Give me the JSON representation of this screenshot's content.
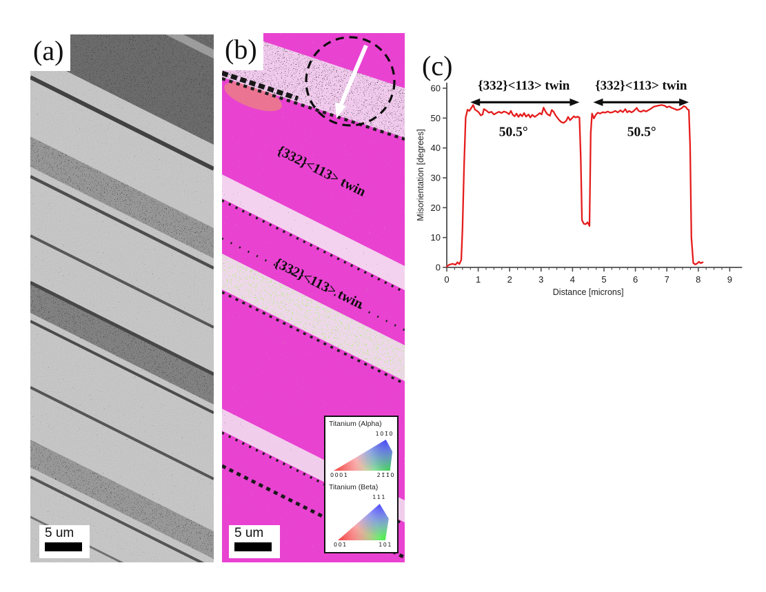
{
  "figure_labels": {
    "a": "(a)",
    "b": "(b)",
    "c": "(c)"
  },
  "panel_a": {
    "description": "grayscale band-contrast micrograph with diagonal twin bands",
    "scale_bar_label": "5 um"
  },
  "panel_b": {
    "description": "EBSD inverse-pole-figure map, magenta beta matrix with twin bands",
    "scale_bar_label": "5 um",
    "twin_labels": [
      "{332}<113> twin",
      "{332}<113> twin"
    ],
    "colors": {
      "matrix_magenta": "#ed38d3",
      "twin_band_pink": "#f7d0f2",
      "speckle_green": "#7de23a",
      "speckle_orange": "#f09a58"
    },
    "legend": {
      "alpha_title": "Titanium (Alpha)",
      "alpha_corner_bottom_left": "0001",
      "alpha_corner_bottom_right": "21̄1̄0",
      "alpha_corner_top_right": "101̄0",
      "beta_title": "Titanium (Beta)",
      "beta_corner_bottom_left": "001",
      "beta_corner_bottom_right": "101",
      "beta_corner_top_right": "111"
    }
  },
  "chart_data": {
    "type": "line",
    "title": "",
    "xlabel": "Distance [microns]",
    "ylabel": "Misorientation [degrees]",
    "xlim": [
      0,
      9
    ],
    "ylim": [
      0,
      60
    ],
    "x_tick_labels": [
      "0",
      "1",
      "2",
      "3",
      "4",
      "5",
      "6",
      "7",
      "8",
      "9"
    ],
    "y_tick_labels": [
      "0",
      "10",
      "20",
      "30",
      "40",
      "50",
      "60"
    ],
    "x_minor_step": 0.25,
    "grid": false,
    "legend_position": "none",
    "series": [
      {
        "name": "misorientation-profile",
        "color": "#e51c1c",
        "points": [
          [
            0,
            0.3
          ],
          [
            0.08,
            0.9
          ],
          [
            0.18,
            1.2
          ],
          [
            0.28,
            0.9
          ],
          [
            0.34,
            1.7
          ],
          [
            0.4,
            1.1
          ],
          [
            0.46,
            2.5
          ],
          [
            0.5,
            13
          ],
          [
            0.55,
            34
          ],
          [
            0.6,
            50.2
          ],
          [
            0.66,
            52.8
          ],
          [
            0.72,
            52.4
          ],
          [
            0.78,
            53.4
          ],
          [
            0.84,
            54.4
          ],
          [
            0.9,
            52.8
          ],
          [
            0.96,
            52.4
          ],
          [
            1.02,
            51.9
          ],
          [
            1.08,
            50.9
          ],
          [
            1.14,
            51.2
          ],
          [
            1.18,
            53
          ],
          [
            1.26,
            52.5
          ],
          [
            1.34,
            51.8
          ],
          [
            1.42,
            52.1
          ],
          [
            1.5,
            51.2
          ],
          [
            1.58,
            51.7
          ],
          [
            1.66,
            52.1
          ],
          [
            1.74,
            51.7
          ],
          [
            1.82,
            52.2
          ],
          [
            1.9,
            51.9
          ],
          [
            1.98,
            51.3
          ],
          [
            2.04,
            52.4
          ],
          [
            2.1,
            51.1
          ],
          [
            2.16,
            50.6
          ],
          [
            2.22,
            51.5
          ],
          [
            2.28,
            50.4
          ],
          [
            2.34,
            51.3
          ],
          [
            2.4,
            50.6
          ],
          [
            2.46,
            51.7
          ],
          [
            2.52,
            50.5
          ],
          [
            2.6,
            51.2
          ],
          [
            2.66,
            50.2
          ],
          [
            2.72,
            51.1
          ],
          [
            2.8,
            50.4
          ],
          [
            2.88,
            51
          ],
          [
            2.96,
            51.7
          ],
          [
            3.02,
            51.2
          ],
          [
            3.08,
            53.5
          ],
          [
            3.14,
            52.2
          ],
          [
            3.2,
            51.3
          ],
          [
            3.28,
            50.8
          ],
          [
            3.34,
            52.7
          ],
          [
            3.4,
            52.1
          ],
          [
            3.46,
            50.9
          ],
          [
            3.52,
            50.1
          ],
          [
            3.58,
            49.3
          ],
          [
            3.64,
            48.7
          ],
          [
            3.72,
            48.4
          ],
          [
            3.8,
            49.1
          ],
          [
            3.86,
            50.4
          ],
          [
            3.92,
            49.3
          ],
          [
            3.98,
            49.9
          ],
          [
            4.04,
            50.6
          ],
          [
            4.1,
            50.2
          ],
          [
            4.16,
            50.5
          ],
          [
            4.22,
            50.2
          ],
          [
            4.26,
            37
          ],
          [
            4.3,
            15.8
          ],
          [
            4.36,
            14.6
          ],
          [
            4.42,
            14.5
          ],
          [
            4.48,
            15.1
          ],
          [
            4.54,
            13.9
          ],
          [
            4.58,
            45
          ],
          [
            4.62,
            51.5
          ],
          [
            4.68,
            49.9
          ],
          [
            4.74,
            51.1
          ],
          [
            4.8,
            51.8
          ],
          [
            4.88,
            51.5
          ],
          [
            4.96,
            52
          ],
          [
            5.04,
            51.8
          ],
          [
            5.12,
            52.2
          ],
          [
            5.2,
            51.8
          ],
          [
            5.28,
            52
          ],
          [
            5.36,
            52.4
          ],
          [
            5.44,
            51.9
          ],
          [
            5.52,
            52.6
          ],
          [
            5.6,
            52
          ],
          [
            5.68,
            53
          ],
          [
            5.74,
            51.9
          ],
          [
            5.8,
            52.4
          ],
          [
            5.88,
            51.9
          ],
          [
            5.96,
            52.5
          ],
          [
            6.04,
            53.4
          ],
          [
            6.1,
            52.4
          ],
          [
            6.18,
            52.1
          ],
          [
            6.26,
            52.6
          ],
          [
            6.34,
            52.2
          ],
          [
            6.42,
            52.7
          ],
          [
            6.5,
            53.2
          ],
          [
            6.58,
            53.8
          ],
          [
            6.66,
            54
          ],
          [
            6.74,
            54.2
          ],
          [
            6.84,
            54.4
          ],
          [
            6.94,
            54.1
          ],
          [
            7,
            53.6
          ],
          [
            7.08,
            53.9
          ],
          [
            7.16,
            53.4
          ],
          [
            7.24,
            53.1
          ],
          [
            7.32,
            52.7
          ],
          [
            7.4,
            52.9
          ],
          [
            7.48,
            53.4
          ],
          [
            7.54,
            54
          ],
          [
            7.6,
            53.7
          ],
          [
            7.66,
            52.9
          ],
          [
            7.7,
            52.7
          ],
          [
            7.74,
            41
          ],
          [
            7.78,
            10
          ],
          [
            7.84,
            1.5
          ],
          [
            7.9,
            1
          ],
          [
            7.96,
            1.3
          ],
          [
            8.02,
            1.9
          ],
          [
            8.08,
            1.4
          ],
          [
            8.14,
            1.7
          ]
        ]
      }
    ],
    "annotations": [
      {
        "text": "{332}<113> twin",
        "x": 2.45,
        "y": 59.5,
        "style": "twin"
      },
      {
        "text": "{332}<113> twin",
        "x": 6.18,
        "y": 59.5,
        "style": "twin"
      },
      {
        "text": "50.5°",
        "x": 2.12,
        "y": 44.0,
        "style": "angle"
      },
      {
        "text": "50.5°",
        "x": 6.2,
        "y": 44.0,
        "style": "angle"
      }
    ],
    "span_arrows": [
      {
        "x1": 0.75,
        "x2": 4.22,
        "y": 55.3
      },
      {
        "x1": 4.66,
        "x2": 7.7,
        "y": 55.3
      }
    ]
  }
}
